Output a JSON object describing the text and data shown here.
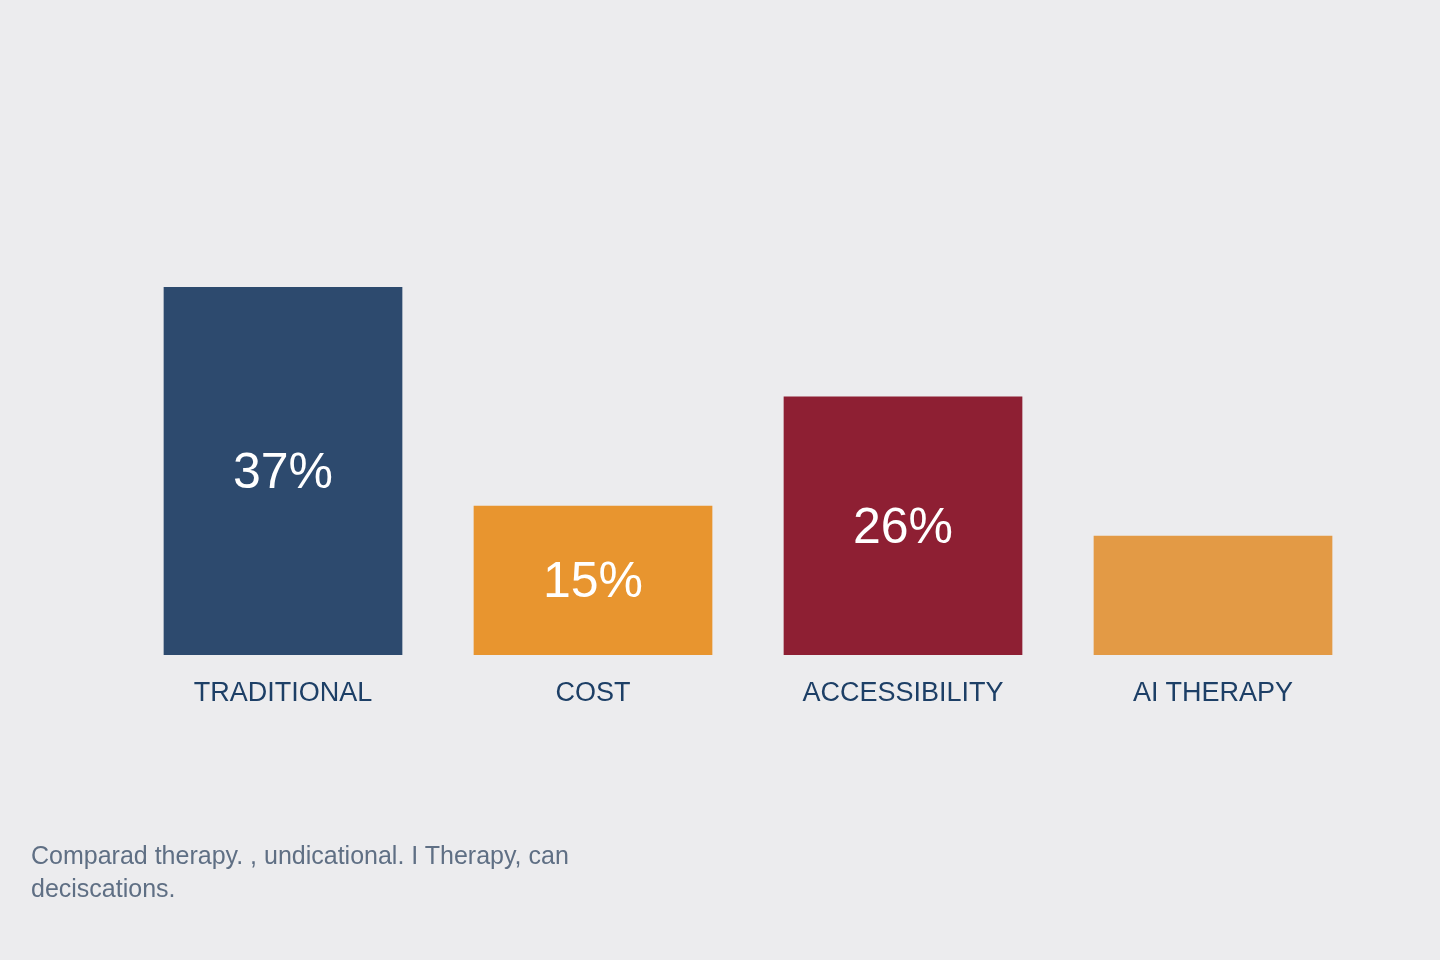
{
  "chart_data": {
    "type": "bar",
    "categories": [
      "TRADITIONAL",
      "COST",
      "ACCESSIBILITY",
      "AI THERAPY"
    ],
    "values": [
      37,
      15,
      26,
      12
    ],
    "colors": [
      "#2d4a6e",
      "#e8952f",
      "#8e1f33",
      "#e39a45"
    ],
    "value_labels": [
      "37%",
      "15%",
      "26%",
      null
    ],
    "annotations": [
      "Comparad therapy. , undicational. I Therapy, can deciscations."
    ],
    "tick_labels": "x"
  }
}
